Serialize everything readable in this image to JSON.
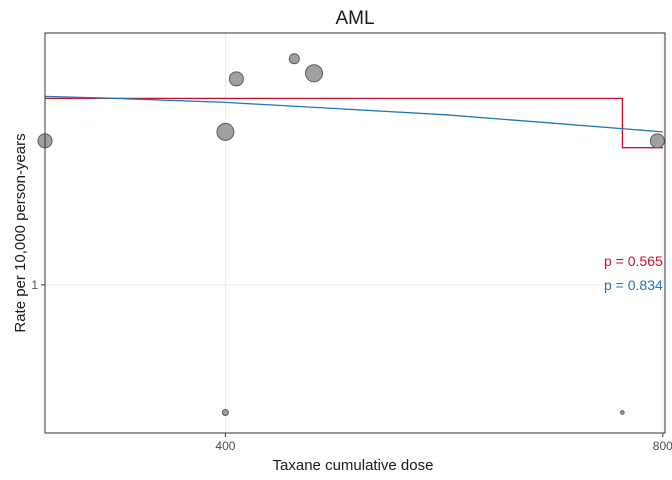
{
  "chart_data": {
    "type": "scatter",
    "title": "AML",
    "xlabel": "Taxane cumulative dose",
    "ylabel": "Rate per 10,000 person-years",
    "xlim": [
      235,
      802
    ],
    "ylim": [
      0.65,
      2.08
    ],
    "y_scale": "log",
    "x_ticks": [
      {
        "value": 400,
        "label": "400"
      },
      {
        "value": 800,
        "label": "800"
      }
    ],
    "y_ticks": [
      {
        "value": 1,
        "label": "1"
      }
    ],
    "grid": true,
    "colors": {
      "points_fill": "#a0a0a0",
      "points_stroke": "#5a5a5a",
      "step_line": "#c8102e",
      "smooth_line": "#1f77b4",
      "grid": "#ebebeb",
      "panel_border": "#333333"
    },
    "points": [
      {
        "x": 235,
        "y": 1.52,
        "size": "medium"
      },
      {
        "x": 400,
        "y": 1.56,
        "size": "large"
      },
      {
        "x": 410,
        "y": 1.82,
        "size": "medium"
      },
      {
        "x": 463,
        "y": 1.93,
        "size": "small"
      },
      {
        "x": 481,
        "y": 1.85,
        "size": "large"
      },
      {
        "x": 795,
        "y": 1.52,
        "size": "medium"
      },
      {
        "x": 400,
        "y": 0.69,
        "size": "tiny"
      },
      {
        "x": 763,
        "y": 0.69,
        "size": "dot"
      }
    ],
    "series": [
      {
        "label_text": "p = 0.565",
        "style": "step",
        "color": "#c8102e",
        "x": [
          235,
          763,
          763,
          800
        ],
        "y": [
          1.72,
          1.72,
          1.49,
          1.49
        ]
      },
      {
        "label_text": "p = 0.834",
        "style": "line",
        "color": "#1f77b4",
        "x": [
          235,
          300,
          400,
          500,
          600,
          700,
          800
        ],
        "y": [
          1.73,
          1.72,
          1.7,
          1.67,
          1.64,
          1.6,
          1.56
        ]
      }
    ]
  }
}
